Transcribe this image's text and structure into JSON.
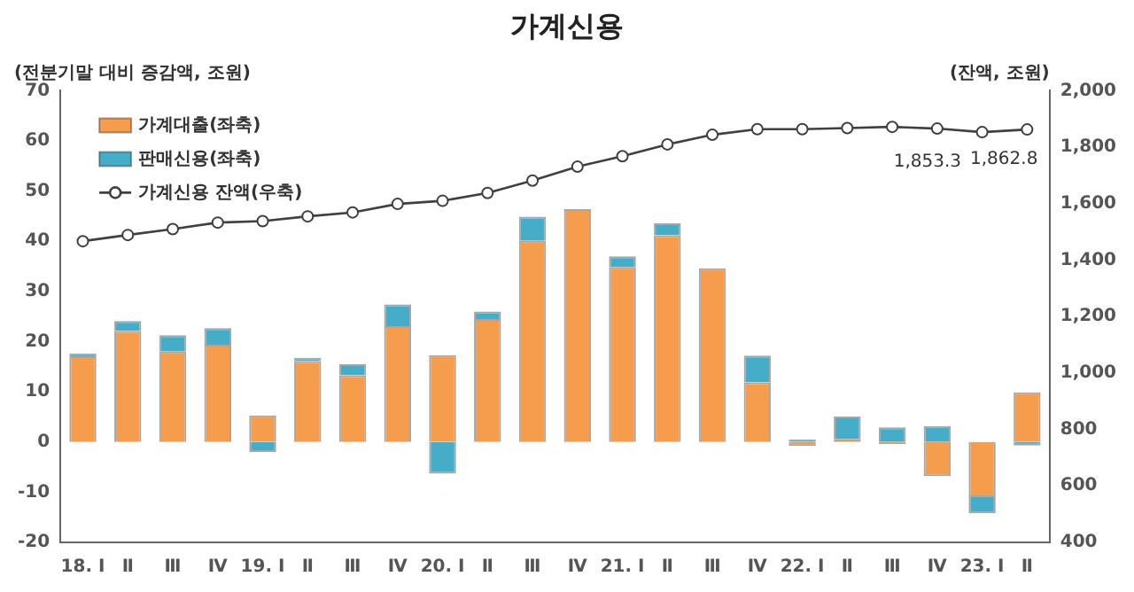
{
  "chart_data": {
    "type": "bar",
    "title": "가계신용",
    "ylabel": "(전분기말 대비 증감액, 조원)",
    "y2label": "(잔액, 조원)",
    "categories": [
      "18. Ⅰ",
      "Ⅱ",
      "Ⅲ",
      "Ⅳ",
      "19. Ⅰ",
      "Ⅱ",
      "Ⅲ",
      "Ⅳ",
      "20. Ⅰ",
      "Ⅱ",
      "Ⅲ",
      "Ⅳ",
      "21. Ⅰ",
      "Ⅱ",
      "Ⅲ",
      "Ⅳ",
      "22. Ⅰ",
      "Ⅱ",
      "Ⅲ",
      "Ⅳ",
      "23. Ⅰ",
      "Ⅱ"
    ],
    "series": [
      {
        "name": "가계대출(좌축)",
        "color": "#f59d4c",
        "values": [
          17.1,
          22.1,
          18.0,
          19.4,
          5.3,
          16.1,
          13.3,
          23.1,
          17.3,
          24.5,
          40.1,
          46.4,
          34.9,
          41.2,
          34.6,
          11.9,
          -0.8,
          0.6,
          -0.4,
          -6.8,
          -11.0,
          9.9
        ]
      },
      {
        "name": "판매신용(좌축)",
        "color": "#45adc8",
        "values": [
          0.5,
          2.0,
          3.3,
          3.3,
          -2.0,
          0.7,
          2.2,
          4.3,
          -6.3,
          1.5,
          4.8,
          0,
          2.1,
          2.4,
          0,
          5.3,
          0.5,
          4.5,
          2.9,
          3.2,
          -3.2,
          -0.7
        ]
      },
      {
        "name": "가계신용 잔액(우축)",
        "type": "line",
        "axis": "y2",
        "color": "#404040",
        "values": [
          1467,
          1489,
          1510,
          1533,
          1538,
          1555,
          1569,
          1599,
          1610,
          1638,
          1682,
          1731,
          1768,
          1810,
          1844,
          1864,
          1864,
          1868,
          1872,
          1866,
          1853.3,
          1862.8
        ],
        "value_labels": [
          null,
          null,
          null,
          null,
          null,
          null,
          null,
          null,
          null,
          null,
          null,
          null,
          null,
          null,
          null,
          null,
          null,
          null,
          null,
          null,
          "1,853.3",
          "1,862.8"
        ]
      }
    ],
    "stacked": true,
    "marker": "circle",
    "legend": "top left",
    "grid": false,
    "ylim": [
      -20,
      70
    ],
    "yticks": [
      -20,
      -10,
      0,
      10,
      20,
      30,
      40,
      50,
      60,
      70
    ],
    "y2lim": [
      400,
      2000
    ],
    "y2ticks": [
      400,
      600,
      800,
      {
        "value": 1000,
        "label": "1,000"
      },
      {
        "value": 1200,
        "label": "1,200"
      },
      {
        "value": 1400,
        "label": "1,400"
      },
      {
        "value": 1600,
        "label": "1,600"
      },
      {
        "value": 1800,
        "label": "1,800"
      },
      {
        "value": 2000,
        "label": "2,000"
      }
    ]
  }
}
